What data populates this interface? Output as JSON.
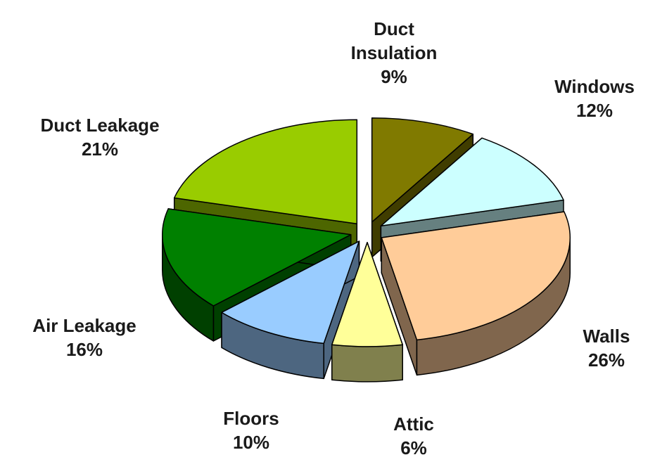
{
  "chart_data": {
    "type": "pie",
    "categories": [
      "Duct Insulation",
      "Windows",
      "Walls",
      "Attic",
      "Floors",
      "Air Leakage",
      "Duct Leakage"
    ],
    "values": [
      9,
      12,
      26,
      6,
      10,
      16,
      21
    ],
    "value_labels": [
      "9%",
      "12%",
      "26%",
      "6%",
      "10%",
      "16%",
      "21%"
    ],
    "colors": [
      "#807a00",
      "#ccffff",
      "#ffcc99",
      "#ffff99",
      "#99ccff",
      "#008000",
      "#99cc00"
    ]
  }
}
